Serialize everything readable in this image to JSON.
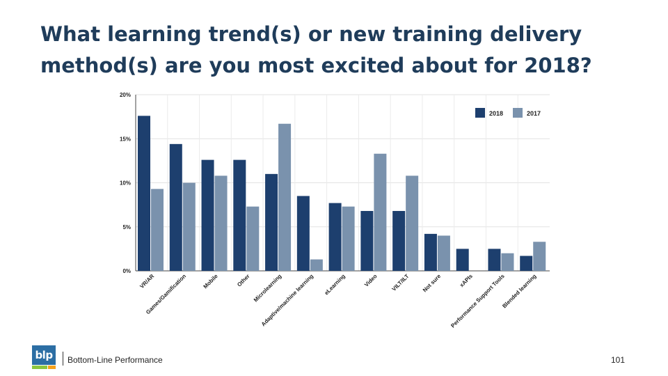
{
  "slide": {
    "title_line1": "What learning trend(s) or new training delivery",
    "title_line2": "method(s) are you most excited about for 2018?",
    "company": "Bottom-Line Performance",
    "logo_text": "blp",
    "page_number": "101"
  },
  "colors": {
    "title": "#1f3c5a",
    "series_2018": "#1d3f6e",
    "series_2017": "#7a92ad",
    "logo_blue": "#2c6ea4",
    "logo_green": "#8cc63f",
    "logo_orange": "#f7a21b"
  },
  "chart_data": {
    "type": "bar",
    "categories": [
      "VR/AR",
      "Games/Gamification",
      "Mobile",
      "Other",
      "Microlearning",
      "Adaptive/machine learning",
      "eLearning",
      "Video",
      "VILT/ILT",
      "Not sure",
      "xAPIs",
      "Performance Support Tools",
      "Blended learning"
    ],
    "series": [
      {
        "name": "2018",
        "color": "#1d3f6e",
        "values": [
          17.6,
          14.4,
          12.6,
          12.6,
          11.0,
          8.5,
          7.7,
          6.8,
          6.8,
          4.2,
          2.5,
          2.5,
          1.7
        ]
      },
      {
        "name": "2017",
        "color": "#7a92ad",
        "values": [
          9.3,
          10.0,
          10.8,
          7.3,
          16.7,
          1.3,
          7.3,
          13.3,
          10.8,
          4.0,
          0,
          2.0,
          3.3
        ]
      }
    ],
    "ylim": [
      0,
      20
    ],
    "yticks": [
      "0%",
      "5%",
      "10%",
      "15%",
      "20%"
    ],
    "ytick_values": [
      0,
      5,
      10,
      15,
      20
    ],
    "grid": true,
    "legend_position": "top-right"
  }
}
